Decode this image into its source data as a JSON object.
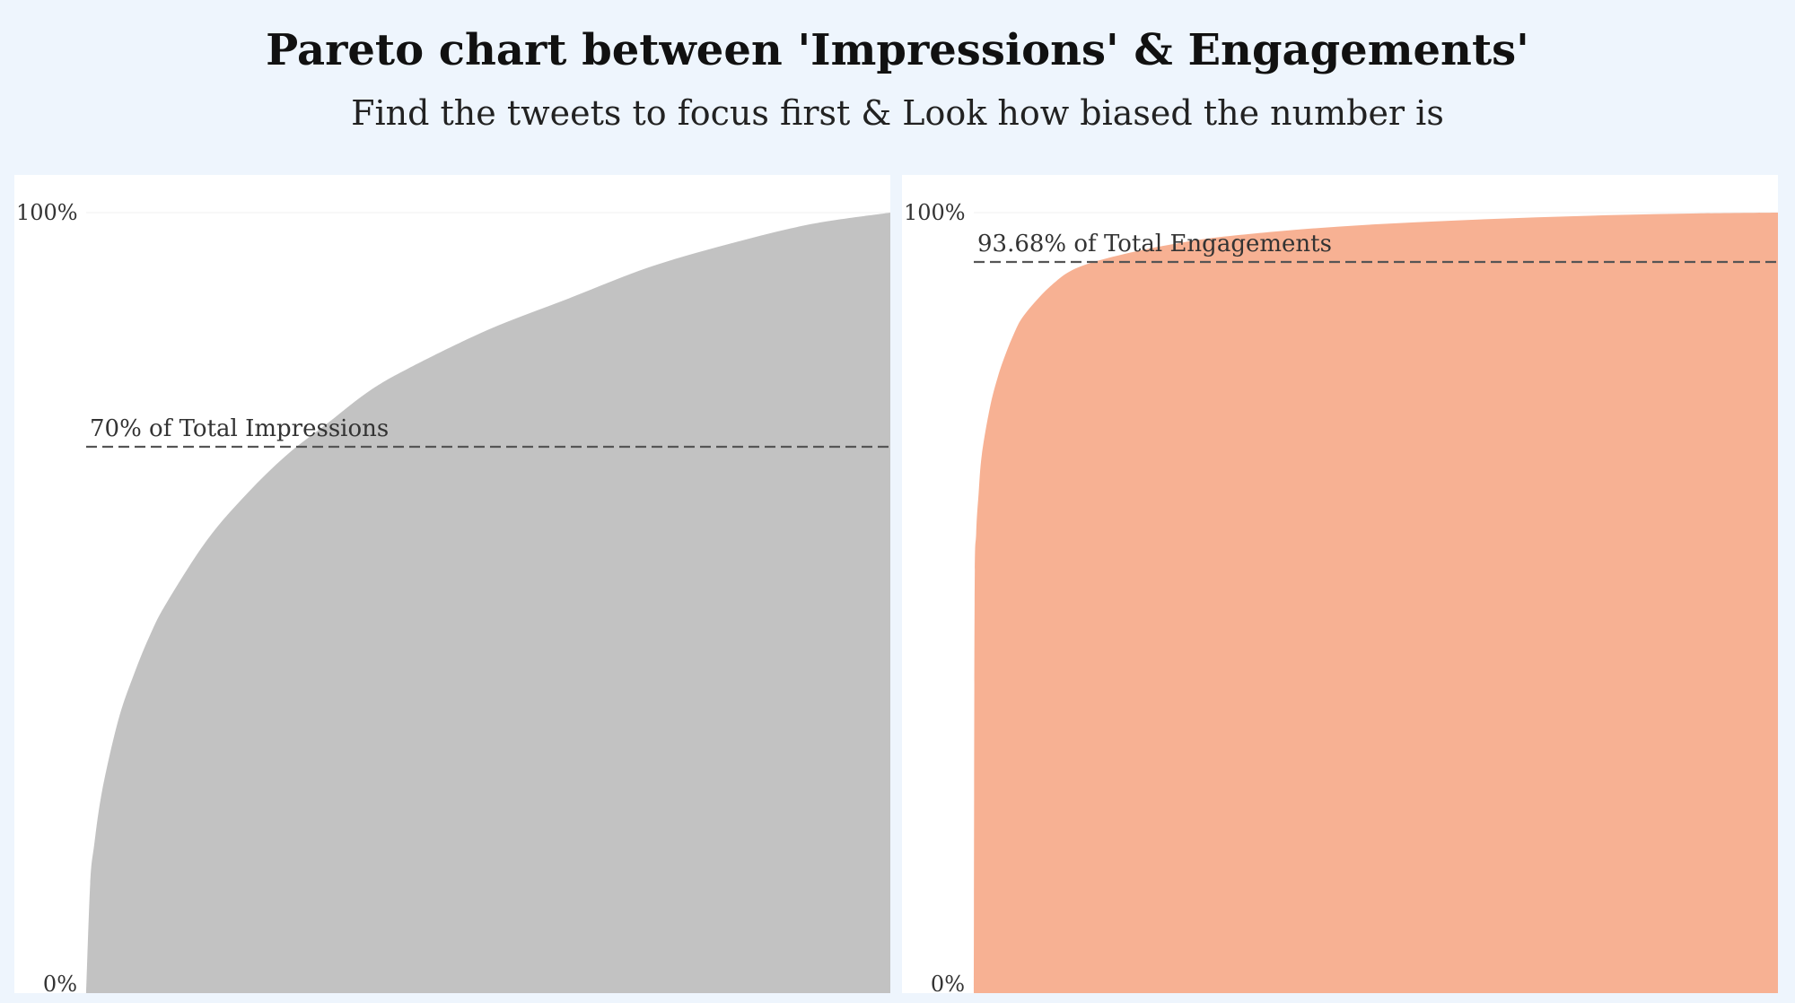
{
  "header": {
    "title": "Pareto chart between 'Impressions' & Engagements'",
    "subtitle": "Find the tweets to focus first & Look how biased the number is"
  },
  "chart_data": [
    {
      "type": "area",
      "title": "",
      "xlabel": "",
      "ylabel": "",
      "y_ticks": [
        "100%",
        "0%"
      ],
      "ylim": [
        0,
        100
      ],
      "xlim": [
        0,
        100
      ],
      "color": "#c2c2c2",
      "series": [
        {
          "x": [
            0,
            0.5,
            1,
            2,
            4,
            6,
            8,
            10,
            15,
            20,
            25,
            30,
            35,
            40,
            50,
            60,
            70,
            80,
            90,
            100
          ],
          "values": [
            0,
            14,
            19,
            26,
            35,
            41,
            46,
            50,
            58,
            64,
            69,
            73,
            77,
            80,
            85,
            89,
            93,
            96,
            98.5,
            100
          ]
        }
      ],
      "reference_line": {
        "value": 70,
        "label": "70% of Total Impressions"
      },
      "grid": false
    },
    {
      "type": "area",
      "title": "",
      "xlabel": "",
      "ylabel": "",
      "y_ticks": [
        "100%",
        "0%"
      ],
      "ylim": [
        0,
        100
      ],
      "xlim": [
        0,
        100
      ],
      "color": "#f7b193",
      "series": [
        {
          "x": [
            0,
            0.1,
            0.3,
            0.6,
            1,
            2,
            3,
            4,
            5,
            6,
            8,
            10,
            12,
            15,
            20,
            25,
            30,
            40,
            50,
            60,
            70,
            80,
            90,
            100
          ],
          "values": [
            0,
            50,
            59,
            64,
            69,
            75,
            79,
            82,
            84.5,
            86.5,
            89,
            91,
            92.5,
            93.7,
            95,
            96,
            96.8,
            97.8,
            98.5,
            99,
            99.4,
            99.7,
            99.9,
            100
          ]
        }
      ],
      "reference_line": {
        "value": 93.68,
        "label": "93.68% of Total Engagements"
      },
      "grid": false
    }
  ]
}
